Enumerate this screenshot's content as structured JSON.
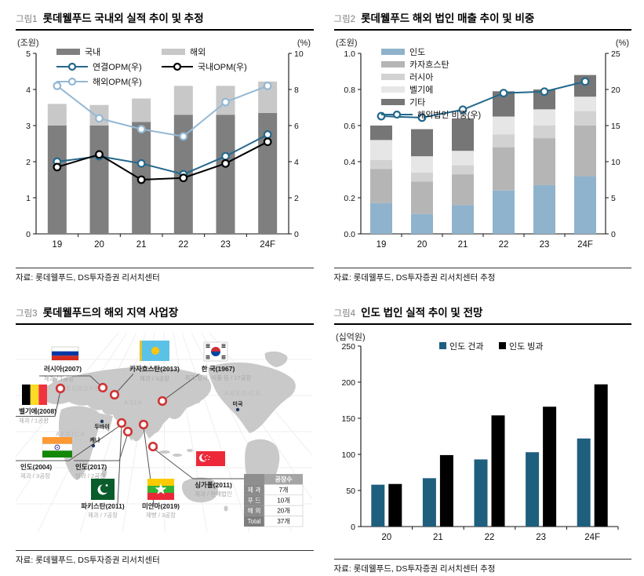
{
  "figures": [
    {
      "tag": "그림1",
      "title": "롯데웰푸드 국내외 실적 추이 및 추정",
      "source": "자료: 롯데웰푸드, DS투자증권 리서치센터"
    },
    {
      "tag": "그림2",
      "title": "롯데웰푸드 해외 법인 매출 추이 및 비중",
      "source": "자료: 롯데웰푸드, DS투자증권 리서치센터 추정"
    },
    {
      "tag": "그림3",
      "title": "롯데웰푸드의 해외 지역 사업장",
      "source": "자료: 롯데웰푸드, DS투자증권 리서치센터"
    },
    {
      "tag": "그림4",
      "title": "인도 법인 실적 추이 및 전망",
      "source": "자료: 롯데웰푸드, DS투자증권 리서치센터 추정"
    }
  ],
  "chart_data": [
    {
      "id": "chart1",
      "type": "bar",
      "subtype": "stacked-bar-with-lines",
      "title": "롯데웰푸드 국내외 실적 추이 및 추정",
      "categories": [
        "19",
        "20",
        "21",
        "22",
        "23",
        "24F"
      ],
      "bar_series": [
        {
          "name": "국내",
          "color": "#7f7f7f",
          "values": [
            3.0,
            3.0,
            3.1,
            3.3,
            3.3,
            3.35
          ]
        },
        {
          "name": "해외",
          "color": "#c8c8c8",
          "values": [
            0.6,
            0.57,
            0.65,
            0.8,
            0.8,
            0.87
          ]
        }
      ],
      "line_series": [
        {
          "name": "연결OPM(우)",
          "color": "#24688c",
          "values": [
            4.0,
            4.3,
            3.9,
            3.3,
            4.3,
            5.5
          ]
        },
        {
          "name": "국내OPM(우)",
          "color": "#000000",
          "values": [
            3.7,
            4.4,
            3.0,
            3.1,
            3.9,
            5.1
          ]
        },
        {
          "name": "해외OPM(우)",
          "color": "#94b8d4",
          "values": [
            8.2,
            6.4,
            5.8,
            5.4,
            7.3,
            8.2
          ]
        }
      ],
      "left_axis": {
        "label": "(조원)",
        "ticks": [
          "0",
          "1",
          "2",
          "3",
          "4",
          "5"
        ],
        "max": 5
      },
      "right_axis": {
        "label": "(%)",
        "ticks": [
          "0",
          "2",
          "4",
          "6",
          "8",
          "10"
        ],
        "max": 10
      },
      "grid": false,
      "legend_position": "top-inside"
    },
    {
      "id": "chart2",
      "type": "bar",
      "subtype": "stacked-bar-with-line",
      "title": "롯데웰푸드 해외 법인 매출 추이 및 비중",
      "categories": [
        "19",
        "20",
        "21",
        "22",
        "23",
        "24F"
      ],
      "bar_series": [
        {
          "name": "인도",
          "color": "#8fb3cc",
          "values": [
            0.17,
            0.11,
            0.16,
            0.24,
            0.27,
            0.32
          ]
        },
        {
          "name": "카자흐스탄",
          "color": "#b5b5b5",
          "values": [
            0.19,
            0.18,
            0.17,
            0.24,
            0.26,
            0.28
          ]
        },
        {
          "name": "러시아",
          "color": "#d2d2d2",
          "values": [
            0.05,
            0.05,
            0.05,
            0.07,
            0.07,
            0.08
          ]
        },
        {
          "name": "벨기에",
          "color": "#e6e6e6",
          "values": [
            0.11,
            0.09,
            0.08,
            0.1,
            0.09,
            0.08
          ]
        },
        {
          "name": "기타",
          "color": "#767676",
          "values": [
            0.08,
            0.15,
            0.18,
            0.14,
            0.11,
            0.12
          ]
        }
      ],
      "line_series": [
        {
          "name": "해외법인 비중(우)",
          "color": "#24688c",
          "values": [
            16.3,
            16.1,
            17.2,
            19.5,
            19.7,
            21.1
          ]
        }
      ],
      "left_axis": {
        "label": "(조원)",
        "ticks": [
          "0.0",
          "0.2",
          "0.4",
          "0.6",
          "0.8",
          "1.0"
        ],
        "max": 1.0
      },
      "right_axis": {
        "label": "(%)",
        "ticks": [
          "0",
          "5",
          "10",
          "15",
          "20",
          "25"
        ],
        "max": 25
      },
      "grid": false,
      "legend_position": "top-left-inside"
    },
    {
      "id": "chart4",
      "type": "bar",
      "subtype": "grouped-bar",
      "title": "인도 법인 실적 추이 및 전망",
      "categories": [
        "20",
        "21",
        "22",
        "23",
        "24F"
      ],
      "bar_series": [
        {
          "name": "인도 건과",
          "color": "#1e5f7e",
          "values": [
            58,
            67,
            93,
            103,
            122
          ]
        },
        {
          "name": "인도 빙과",
          "color": "#000000",
          "values": [
            59,
            99,
            154,
            166,
            197
          ]
        }
      ],
      "line_series": [],
      "left_axis": {
        "label": "(십억원)",
        "ticks": [
          "0",
          "50",
          "100",
          "150",
          "200",
          "250"
        ],
        "max": 250
      },
      "grid": false,
      "legend_position": "top-center-inside"
    }
  ],
  "map": {
    "regions": [
      {
        "name": "EUROPE"
      },
      {
        "name": "ASIA"
      },
      {
        "name": "AFRICA"
      },
      {
        "name": "AMERICA"
      }
    ],
    "cities": [
      {
        "name": "두바이"
      },
      {
        "name": "케냐"
      },
      {
        "name": "미국"
      }
    ],
    "countries": [
      {
        "key": "russia",
        "name": "러시아(2007)",
        "detail": "제과 / 1공장"
      },
      {
        "key": "kazakhstan",
        "name": "카자흐스탄(2013)",
        "detail": "제과 / 3공장"
      },
      {
        "key": "korea",
        "name": "한 국(1967)",
        "detail": "제과,빙과, 식품 등 / 17공장"
      },
      {
        "key": "belgium",
        "name": "벨기에(2008)",
        "detail": "제과 / 1공장"
      },
      {
        "key": "india2004",
        "name": "인도(2004)",
        "detail": "제과 / 3공장"
      },
      {
        "key": "india2017",
        "name": "인도(2017)",
        "detail": "빙과 / 2공장"
      },
      {
        "key": "pakistan",
        "name": "파키스탄(2011)",
        "detail": "제과 / 7공장"
      },
      {
        "key": "myanmar",
        "name": "미얀마(2019)",
        "detail": "제빵 / 3공장"
      },
      {
        "key": "singapore",
        "name": "싱가폴(2011)",
        "detail": "제과 / 판매법인"
      }
    ],
    "table": {
      "header": "공장수",
      "rows": [
        {
          "label": "제 과",
          "value": "7개"
        },
        {
          "label": "푸 드",
          "value": "10개"
        },
        {
          "label": "해 외",
          "value": "20개"
        },
        {
          "label": "Total",
          "value": "37개"
        }
      ]
    }
  }
}
